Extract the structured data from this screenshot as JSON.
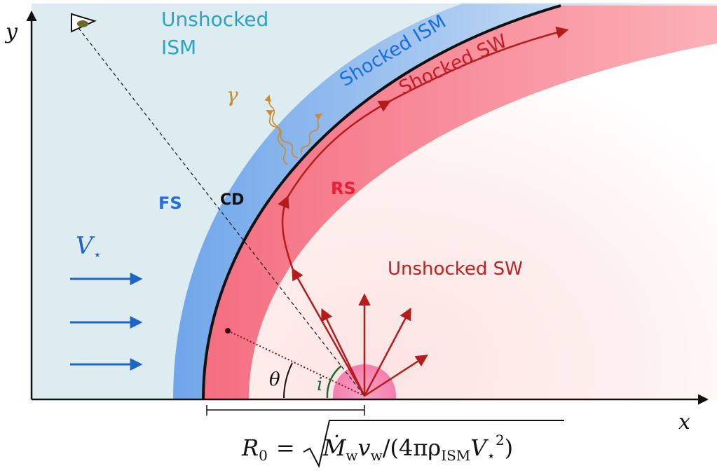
{
  "labels": {
    "y_axis": "y",
    "x_axis": "x",
    "unshocked_ism": [
      "Unshocked",
      "ISM"
    ],
    "shocked_ism": "Shocked ISM",
    "shocked_sw": "Shocked SW",
    "fs": "FS",
    "cd": "CD",
    "rs": "RS",
    "unshocked_sw": "Unshocked SW",
    "velocity": "V",
    "velocity_sub": "⋆",
    "gamma": "γ",
    "theta": "θ",
    "incl": "i"
  },
  "formula": {
    "parts": [
      "R",
      "0",
      "=",
      "Ṁ",
      "w",
      "v",
      "w",
      "/(4πρ",
      "ISM",
      "V",
      "⋆",
      "2",
      ")"
    ]
  }
}
